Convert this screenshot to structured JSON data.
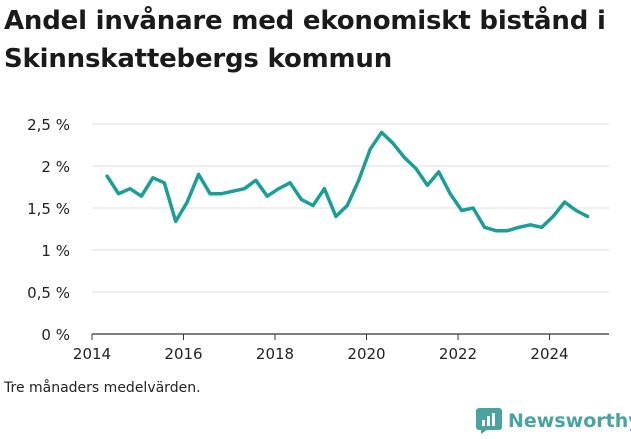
{
  "chart_data": {
    "type": "line",
    "title": "Andel invånare med ekonomiskt bistånd i Skinnskattebergs kommun",
    "note": "Tre månaders medelvärden.",
    "brand": "Newsworthy",
    "xlim": [
      2014,
      2025.3
    ],
    "ylim": [
      0,
      2.5
    ],
    "x_ticks": [
      2014,
      2016,
      2018,
      2020,
      2022,
      2024
    ],
    "x_tick_labels": [
      "2014",
      "2016",
      "2018",
      "2020",
      "2022",
      "2024"
    ],
    "y_ticks": [
      0,
      0.5,
      1,
      1.5,
      2,
      2.5
    ],
    "y_tick_labels": [
      "0 %",
      "0,5 %",
      "1 %",
      "1,5 %",
      "2 %",
      "2,5 %"
    ],
    "grid": true,
    "colors": {
      "line": "#1a9e96",
      "grid": "#dddddd",
      "text": "#222222"
    },
    "series": [
      {
        "x": [
          2014.33,
          2014.58,
          2014.83,
          2015.08,
          2015.33,
          2015.58,
          2015.83,
          2016.08,
          2016.33,
          2016.58,
          2016.83,
          2017.08,
          2017.33,
          2017.58,
          2017.83,
          2018.08,
          2018.33,
          2018.58,
          2018.83,
          2019.08,
          2019.33,
          2019.58,
          2019.83,
          2020.08,
          2020.33,
          2020.58,
          2020.83,
          2021.08,
          2021.33,
          2021.58,
          2021.83,
          2022.08,
          2022.33,
          2022.58,
          2022.83,
          2023.08,
          2023.33,
          2023.58,
          2023.83,
          2024.08,
          2024.33,
          2024.58,
          2024.83
        ],
        "values": [
          1.88,
          1.67,
          1.73,
          1.64,
          1.86,
          1.8,
          1.34,
          1.57,
          1.9,
          1.67,
          1.67,
          1.7,
          1.73,
          1.83,
          1.64,
          1.73,
          1.8,
          1.6,
          1.53,
          1.73,
          1.4,
          1.53,
          1.83,
          2.2,
          2.4,
          2.27,
          2.1,
          1.97,
          1.77,
          1.93,
          1.67,
          1.47,
          1.5,
          1.27,
          1.23,
          1.23,
          1.27,
          1.3,
          1.27,
          1.4,
          1.57,
          1.47,
          1.4
        ]
      }
    ]
  }
}
